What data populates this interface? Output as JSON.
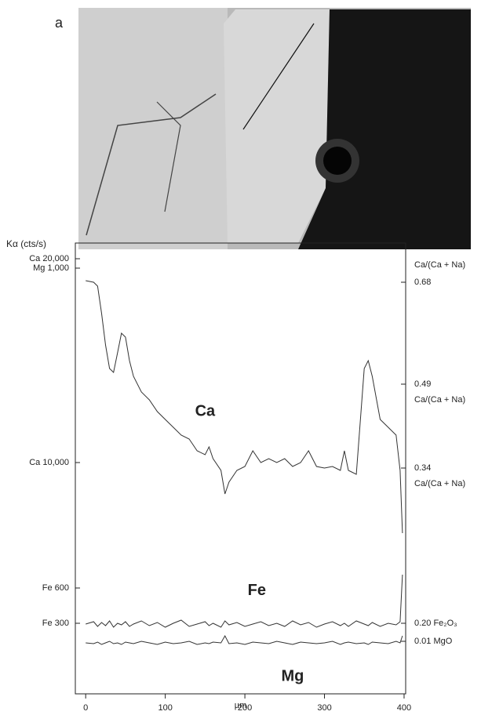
{
  "panel_label": "a",
  "chart_data": {
    "type": "line",
    "ylabel": "Kα (cts/s)",
    "xlabel": "µm",
    "xlim": [
      -13,
      402
    ],
    "xticks": [
      0,
      100,
      200,
      300,
      400
    ],
    "ylim": [
      -1346,
      20769
    ],
    "yticks": [
      {
        "value": 20000,
        "label": "Ca 20,000"
      },
      {
        "value": 19538,
        "label": "Mg 1,000"
      },
      {
        "value": 10000,
        "label": "Ca 10,000"
      },
      {
        "value": 3846,
        "label": "Fe 600"
      },
      {
        "value": 2115,
        "label": "Fe 300"
      }
    ],
    "y2lim": [
      -1346,
      20769
    ],
    "y2ticks": [
      {
        "value": 18846,
        "label": "0.68",
        "heading": "Ca/(Ca + Na)"
      },
      {
        "value": 13846,
        "label": "0.49",
        "heading": "Ca/(Ca + Na)"
      },
      {
        "value": 9731,
        "label": "0.34",
        "heading": "Ca/(Ca + Na)"
      },
      {
        "value": 2115,
        "label": "0.20 Fe₂O₃"
      },
      {
        "value": 1231,
        "label": "0.01 MgO"
      }
    ],
    "x": [
      0,
      10,
      15,
      20,
      25,
      30,
      35,
      40,
      45,
      50,
      55,
      60,
      70,
      80,
      90,
      100,
      110,
      120,
      130,
      140,
      150,
      155,
      160,
      170,
      175,
      180,
      190,
      200,
      210,
      220,
      230,
      240,
      250,
      260,
      270,
      280,
      290,
      300,
      310,
      320,
      325,
      330,
      340,
      350,
      355,
      360,
      370,
      380,
      390,
      395,
      398
    ],
    "series": [
      {
        "name": "Ca",
        "color": "#333333",
        "values": [
          18923,
          18846,
          18654,
          17308,
          15769,
          14615,
          14423,
          15385,
          16346,
          16154,
          15000,
          14231,
          13462,
          13077,
          12500,
          12115,
          11731,
          11346,
          11154,
          10577,
          10385,
          10769,
          10192,
          9615,
          8462,
          9038,
          9615,
          9808,
          10577,
          10000,
          10192,
          10000,
          10192,
          9808,
          10000,
          10577,
          9808,
          9731,
          9808,
          9615,
          10577,
          9615,
          9423,
          14615,
          15000,
          14231,
          12115,
          11731,
          11346,
          9615,
          6538
        ]
      },
      {
        "name": "Fe",
        "color": "#333333",
        "values": [
          2077,
          2192,
          1962,
          2154,
          2000,
          2231,
          1923,
          2115,
          2038,
          2192,
          1962,
          2077,
          2231,
          2000,
          2154,
          1923,
          2115,
          2269,
          1962,
          2077,
          2192,
          2000,
          2115,
          1923,
          2231,
          2038,
          2154,
          1962,
          2077,
          2192,
          2000,
          2115,
          1962,
          2231,
          2038,
          2154,
          1923,
          2077,
          2192,
          2000,
          2115,
          1962,
          2231,
          2077,
          2000,
          2154,
          1962,
          2115,
          2038,
          2192,
          4500
        ]
      },
      {
        "name": "Mg",
        "color": "#333333",
        "values": [
          1154,
          1115,
          1192,
          1077,
          1154,
          1231,
          1115,
          1154,
          1077,
          1192,
          1154,
          1115,
          1231,
          1154,
          1077,
          1192,
          1115,
          1154,
          1231,
          1077,
          1154,
          1115,
          1192,
          1154,
          1500,
          1115,
          1154,
          1077,
          1192,
          1154,
          1115,
          1231,
          1154,
          1077,
          1192,
          1154,
          1115,
          1154,
          1231,
          1077,
          1154,
          1192,
          1115,
          1154,
          1077,
          1192,
          1154,
          1115,
          1231,
          1154,
          1500
        ]
      }
    ]
  }
}
